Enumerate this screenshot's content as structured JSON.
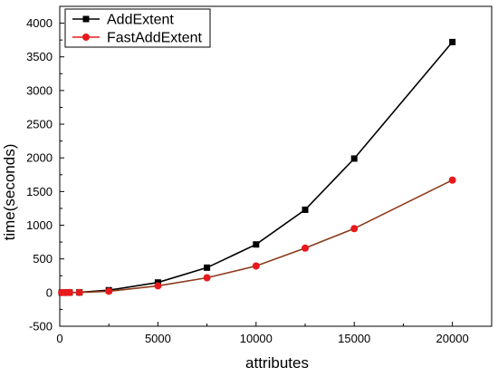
{
  "chart_data": {
    "type": "line",
    "title": "",
    "xlabel": "attributes",
    "ylabel": "time(seconds)",
    "xlim": [
      0,
      22000
    ],
    "ylim": [
      -500,
      4250
    ],
    "xticks": [
      0,
      5000,
      10000,
      15000,
      20000
    ],
    "yticks": [
      -500,
      0,
      500,
      1000,
      1500,
      2000,
      2500,
      3000,
      3500,
      4000
    ],
    "grid": false,
    "legend_position": "top-left",
    "series": [
      {
        "name": "AddExtent",
        "color": "#000000",
        "marker": "square",
        "x": [
          100,
          300,
          500,
          1000,
          2500,
          5000,
          7500,
          10000,
          12500,
          15000,
          20000
        ],
        "y": [
          0,
          0,
          1,
          3,
          35,
          150,
          370,
          715,
          1230,
          1990,
          3720
        ]
      },
      {
        "name": "FastAddExtent",
        "color": "#e8191c",
        "line_color": "#8b3a1a",
        "marker": "circle",
        "x": [
          100,
          300,
          500,
          1000,
          2500,
          5000,
          7500,
          10000,
          12500,
          15000,
          20000
        ],
        "y": [
          0,
          0,
          1,
          2,
          20,
          100,
          220,
          395,
          660,
          950,
          1670
        ]
      }
    ]
  }
}
